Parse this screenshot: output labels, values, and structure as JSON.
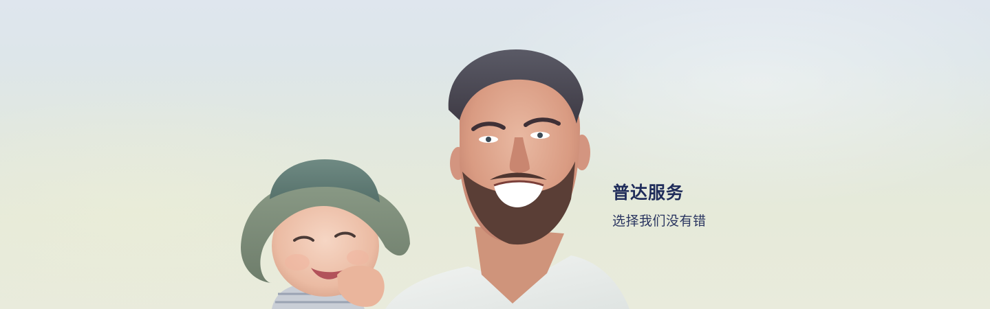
{
  "banner": {
    "title": "普达服务",
    "subtitle": "选择我们没有错",
    "colors": {
      "title": "#1f2c5a",
      "subtitle": "#2a3560",
      "background_top": "#dfe6ee",
      "background_bottom": "#e9ebdc"
    },
    "photo_subject": "smiling-father-holding-baby-in-bucket-hat"
  }
}
